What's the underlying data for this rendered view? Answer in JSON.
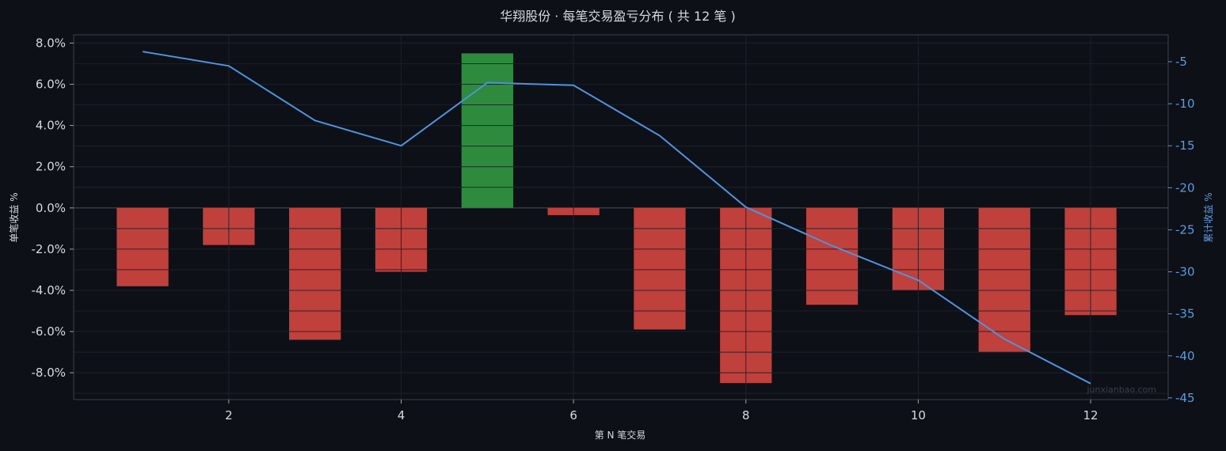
{
  "colors": {
    "background": "#0d1017",
    "grid": "#232833",
    "axis": "#3a404b",
    "text": "#d6d9de",
    "profit_bar": "#2e8b3e",
    "loss_bar": "#c0403c",
    "cumulative_line": "#4f93de"
  },
  "chart_data": {
    "type": "bar",
    "title": "华翔股份 · 每笔交易盈亏分布 ( 共 12 笔 )",
    "xlabel": "第 N 笔交易",
    "ylabel": "单笔收益 %",
    "y2label": "累计收益 %",
    "watermark": "junxianbao.com",
    "x": [
      1,
      2,
      3,
      4,
      5,
      6,
      7,
      8,
      9,
      10,
      11,
      12
    ],
    "x_ticks": [
      2,
      4,
      6,
      8,
      10,
      12
    ],
    "xlim": [
      0.2,
      12.9
    ],
    "ylim": [
      -9.3,
      8.4
    ],
    "y_ticks": [
      8,
      6,
      4,
      2,
      0,
      -2,
      -4,
      -6,
      -8
    ],
    "y_tick_labels": [
      "8.0%",
      "6.0%",
      "4.0%",
      "2.0%",
      "0.0%",
      "-2.0%",
      "-4.0%",
      "-6.0%",
      "-8.0%"
    ],
    "y2lim": [
      -45.2,
      -1.8
    ],
    "y2_ticks": [
      -5,
      -10,
      -15,
      -20,
      -25,
      -30,
      -35,
      -40,
      -45
    ],
    "grid": true,
    "series": [
      {
        "name": "单笔收益 %",
        "type": "bar",
        "values": [
          -3.8,
          -1.8,
          -6.4,
          -3.1,
          7.5,
          -0.35,
          -5.9,
          -8.5,
          -4.7,
          -4.0,
          -7.0,
          -5.2
        ]
      },
      {
        "name": "累计收益 %",
        "type": "line",
        "axis": "right",
        "values": [
          -3.8,
          -5.5,
          -12.0,
          -15.0,
          -7.5,
          -7.8,
          -13.8,
          -22.3,
          -26.9,
          -31.0,
          -38.0,
          -43.3
        ]
      }
    ]
  }
}
